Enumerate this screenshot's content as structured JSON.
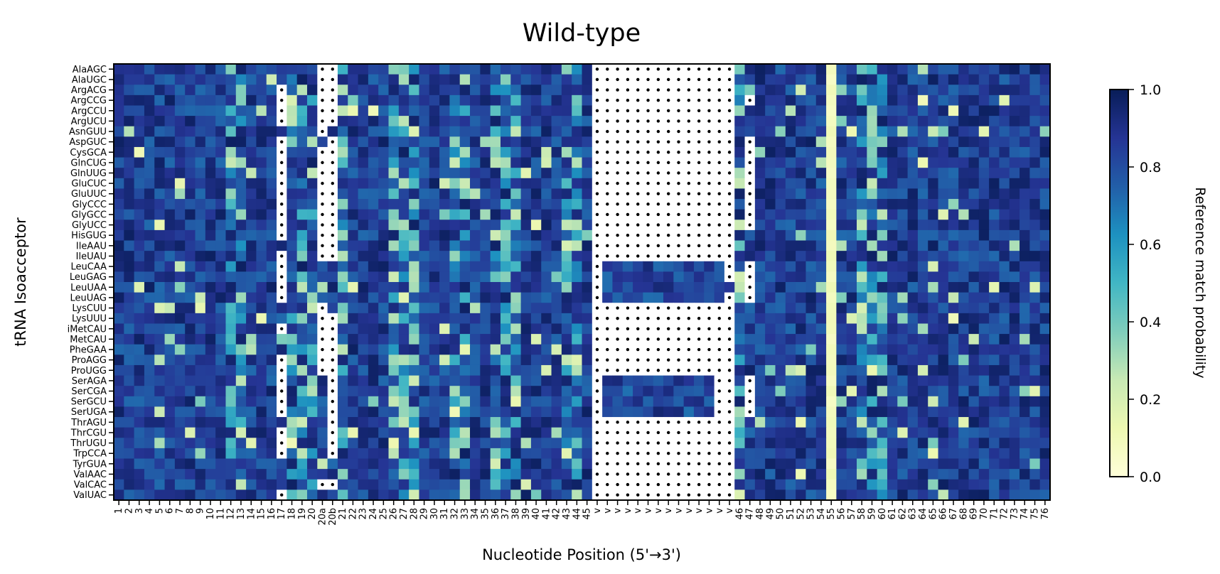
{
  "chart_data": {
    "type": "heatmap",
    "title": "Wild-type",
    "xlabel": "Nucleotide Position (5'→3')",
    "ylabel": "tRNA Isoacceptor",
    "colorbar": {
      "label": "Reference match probability",
      "range": [
        0.0,
        1.0
      ],
      "ticks": [
        "0.0",
        "0.2",
        "0.4",
        "0.6",
        "0.8",
        "1.0"
      ],
      "colormap": "YlGnBu",
      "stops": [
        "#ffffd9",
        "#edf8b1",
        "#c7e9b4",
        "#7fcdbb",
        "#41b6c4",
        "#1d91c0",
        "#225ea8",
        "#253494",
        "#081d58"
      ]
    },
    "rows": [
      "AlaAGC",
      "AlaUGC",
      "ArgACG",
      "ArgCCG",
      "ArgCCU",
      "ArgUCU",
      "AsnGUU",
      "AspGUC",
      "CysGCA",
      "GlnCUG",
      "GlnUUG",
      "GluCUC",
      "GluUUC",
      "GlyCCC",
      "GlyGCC",
      "GlyUCC",
      "HisGUG",
      "IleAAU",
      "IleUAU",
      "LeuCAA",
      "LeuGAG",
      "LeuUAA",
      "LeuUAG",
      "LysCUU",
      "LysUUU",
      "iMetCAU",
      "MetCAU",
      "PheGAA",
      "ProAGG",
      "ProUGG",
      "SerAGA",
      "SerCGA",
      "SerGCU",
      "SerUGA",
      "ThrAGU",
      "ThrCGU",
      "ThrUGU",
      "TrpCCA",
      "TyrGUA",
      "ValAAC",
      "ValCAC",
      "ValUAC"
    ],
    "columns": [
      "1",
      "2",
      "3",
      "4",
      "5",
      "6",
      "7",
      "8",
      "9",
      "10",
      "11",
      "12",
      "13",
      "14",
      "15",
      "16",
      "17",
      "18",
      "19",
      "20",
      "20a",
      "20b",
      "21",
      "22",
      "23",
      "24",
      "25",
      "26",
      "27",
      "28",
      "29",
      "30",
      "31",
      "32",
      "33",
      "34",
      "35",
      "36",
      "37",
      "38",
      "39",
      "40",
      "41",
      "42",
      "43",
      "44",
      "45",
      "v",
      "v",
      "v",
      "v",
      "v",
      "v",
      "v",
      "v",
      "v",
      "v",
      "v",
      "v",
      "v",
      "v",
      "46",
      "47",
      "48",
      "49",
      "50",
      "51",
      "52",
      "53",
      "54",
      "55",
      "56",
      "57",
      "58",
      "59",
      "60",
      "61",
      "62",
      "63",
      "64",
      "65",
      "66",
      "67",
      "68",
      "69",
      "70",
      "71",
      "72",
      "73",
      "74",
      "75",
      "76"
    ],
    "absent_marker": "dotted white cell = no nucleotide at this position",
    "notes": "Position 55 column ≈ 0.05–0.1 for all isoacceptors; variable-loop (v) columns absent for most tRNAs, present (~0.85) for Leu and Ser isoacceptors."
  }
}
